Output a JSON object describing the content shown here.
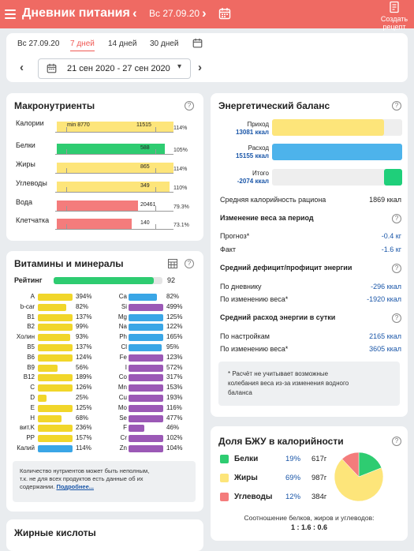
{
  "header": {
    "title": "Дневник питания",
    "date": "Вс 27.09.20",
    "create_recipe": [
      "Создать",
      "рецепт"
    ],
    "colors": {
      "bar": "#ef6a63"
    }
  },
  "period": {
    "tabs": [
      {
        "label": "Вс 27.09.20"
      },
      {
        "label": "7 дней"
      },
      {
        "label": "14 дней"
      },
      {
        "label": "30 дней"
      }
    ],
    "active_tab": "7 дней",
    "range": "21 сен 2020 - 27 сен 2020"
  },
  "macros": {
    "title": "Макронутриенты",
    "min_label": "min 8770",
    "max_label": "11515",
    "items": [
      {
        "name": "Калории",
        "value": "13081.2 кКал",
        "pct": "114%",
        "fill": 1.14,
        "color": "#fde57a",
        "bar_value": ""
      },
      {
        "name": "Белки",
        "value": "617 г",
        "pct": "105%",
        "fill": 1.05,
        "color": "#2ecc71",
        "bar_value": "588"
      },
      {
        "name": "Жиры",
        "value": "987.2 г",
        "pct": "114%",
        "fill": 1.14,
        "color": "#fde57a",
        "bar_value": "865"
      },
      {
        "name": "Углеводы",
        "value": "384.1 г",
        "pct": "110%",
        "fill": 1.1,
        "color": "#fde57a",
        "bar_value": "349"
      },
      {
        "name": "Вода",
        "value": "16252 г",
        "pct": "79.3%",
        "fill": 0.793,
        "color": "#f47c7c",
        "bar_value": "20461"
      },
      {
        "name": "Клетчатка",
        "value": "102.3 г",
        "pct": "73.1%",
        "fill": 0.731,
        "color": "#f47c7c",
        "bar_value": "140"
      }
    ]
  },
  "vitamins": {
    "title": "Витамины и минералы",
    "rating_label": "Рейтинг",
    "rating_value": "92",
    "left": [
      {
        "name": "A",
        "pct": "394%",
        "color": "#f1d62a"
      },
      {
        "name": "b-car",
        "pct": "82%",
        "color": "#f1d62a"
      },
      {
        "name": "B1",
        "pct": "137%",
        "color": "#f1d62a"
      },
      {
        "name": "B2",
        "pct": "99%",
        "color": "#f1d62a"
      },
      {
        "name": "Холин",
        "pct": "93%",
        "color": "#f1d62a"
      },
      {
        "name": "B5",
        "pct": "137%",
        "color": "#f1d62a"
      },
      {
        "name": "B6",
        "pct": "124%",
        "color": "#f1d62a"
      },
      {
        "name": "B9",
        "pct": "56%",
        "color": "#f1d62a"
      },
      {
        "name": "B12",
        "pct": "189%",
        "color": "#f1d62a"
      },
      {
        "name": "C",
        "pct": "126%",
        "color": "#f1d62a"
      },
      {
        "name": "D",
        "pct": "25%",
        "color": "#f1d62a"
      },
      {
        "name": "E",
        "pct": "125%",
        "color": "#f1d62a"
      },
      {
        "name": "H",
        "pct": "68%",
        "color": "#f1d62a"
      },
      {
        "name": "вит.K",
        "pct": "236%",
        "color": "#f1d62a"
      },
      {
        "name": "PP",
        "pct": "157%",
        "color": "#f1d62a"
      },
      {
        "name": "Калий",
        "pct": "114%",
        "color": "#3aa6e6"
      }
    ],
    "right": [
      {
        "name": "Ca",
        "pct": "82%",
        "color": "#3aa6e6"
      },
      {
        "name": "Si",
        "pct": "499%",
        "color": "#9b59b6"
      },
      {
        "name": "Mg",
        "pct": "125%",
        "color": "#3aa6e6"
      },
      {
        "name": "Na",
        "pct": "122%",
        "color": "#3aa6e6"
      },
      {
        "name": "Ph",
        "pct": "165%",
        "color": "#3aa6e6"
      },
      {
        "name": "Cl",
        "pct": "95%",
        "color": "#3aa6e6"
      },
      {
        "name": "Fe",
        "pct": "123%",
        "color": "#9b59b6"
      },
      {
        "name": "I",
        "pct": "572%",
        "color": "#9b59b6"
      },
      {
        "name": "Co",
        "pct": "317%",
        "color": "#9b59b6"
      },
      {
        "name": "Mn",
        "pct": "153%",
        "color": "#9b59b6"
      },
      {
        "name": "Cu",
        "pct": "193%",
        "color": "#9b59b6"
      },
      {
        "name": "Mo",
        "pct": "116%",
        "color": "#9b59b6"
      },
      {
        "name": "Se",
        "pct": "477%",
        "color": "#9b59b6"
      },
      {
        "name": "F",
        "pct": "46%",
        "color": "#9b59b6"
      },
      {
        "name": "Cr",
        "pct": "102%",
        "color": "#9b59b6"
      },
      {
        "name": "Zn",
        "pct": "104%",
        "color": "#9b59b6"
      }
    ],
    "note": [
      "Количество нутриентов может быть неполным,",
      "т.к. не для всех продуктов есть данные об их",
      "содержании."
    ],
    "note_link": "Подробнее..."
  },
  "fatty_acids": {
    "title": "Жирные кислоты"
  },
  "energy": {
    "title": "Энергетический баланс",
    "intake_label": "Приход",
    "intake_value": "13081 ккал",
    "spend_label": "Расход",
    "spend_value": "15155 ккал",
    "total_label": "Итого",
    "total_value": "-2074 ккал",
    "avg_label": "Средняя калорийность рациона",
    "avg_value": "1869 ккал",
    "weight_title": "Изменение веса за период",
    "forecast_label": "Прогноз*",
    "forecast_value": "-0.4 кг",
    "fact_label": "Факт",
    "fact_value": "-1.6 кг",
    "deficit_title": "Средний дефицит/профицит энергии",
    "by_diary_label": "По дневнику",
    "by_diary_value": "-296 ккал",
    "by_weight_label": "По изменению веса*",
    "by_weight_value": "-1920 ккал",
    "spend_title": "Средний расход энергии в сутки",
    "by_settings_label": "По настройкам",
    "by_settings_value": "2165 ккал",
    "by_weight2_label": "По изменению веса*",
    "by_weight2_value": "3605 ккал",
    "footnote": [
      "* Расчёт не учитывает возможные",
      "колебания веса из-за изменения водного",
      "баланса"
    ]
  },
  "bju": {
    "title": "Доля БЖУ в калорийности",
    "items": [
      {
        "name": "Белки",
        "pct": "19%",
        "grams": "617г",
        "color": "#2ecc71",
        "share": 19
      },
      {
        "name": "Жиры",
        "pct": "69%",
        "grams": "987г",
        "color": "#fde57a",
        "share": 69
      },
      {
        "name": "Углеводы",
        "pct": "12%",
        "grams": "384г",
        "color": "#f47c7c",
        "share": 12
      }
    ],
    "ratio_label": "Соотношение белков, жиров и углеводов:",
    "ratio_value": "1 : 1.6 : 0.6"
  }
}
